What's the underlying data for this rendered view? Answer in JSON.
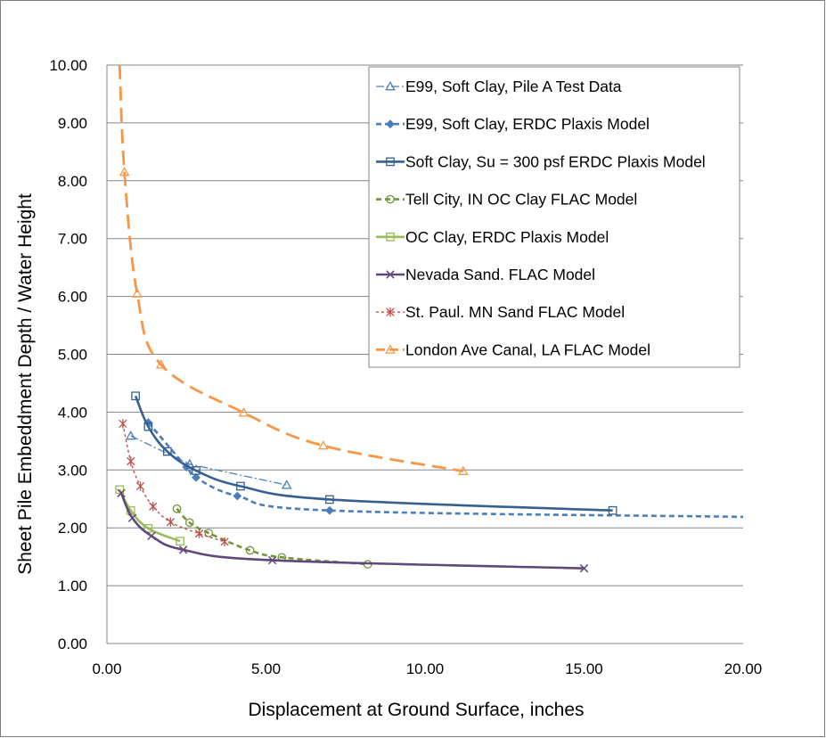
{
  "chart_data": {
    "type": "line",
    "title": "",
    "xlabel": "Displacement at Ground Surface, inches",
    "ylabel": "Sheet Pile Embeddment Depth / Water Height",
    "xlim": [
      0,
      20
    ],
    "ylim": [
      0,
      10
    ],
    "x_ticks": [
      "0.00",
      "5.00",
      "10.00",
      "15.00",
      "20.00"
    ],
    "y_ticks": [
      "0.00",
      "1.00",
      "2.00",
      "3.00",
      "4.00",
      "5.00",
      "6.00",
      "7.00",
      "8.00",
      "9.00",
      "10.00"
    ],
    "grid": "horizontal major gridlines",
    "legend_position": "top-right",
    "series": [
      {
        "name": "E99, Soft Clay, Pile A Test Data",
        "color": "#4a7ebb",
        "line": "dashdot-thin",
        "marker": "triangle",
        "curve": "straight",
        "x": [
          0.75,
          2.6,
          5.65
        ],
        "y": [
          3.59,
          3.1,
          2.74
        ]
      },
      {
        "name": "E99, Soft Clay, ERDC Plaxis Model",
        "color": "#4a7ebb",
        "line": "dashed",
        "marker": "diamond",
        "curve": "smooth",
        "x": [
          1.3,
          2.5,
          2.8,
          4.1,
          7.0,
          20.0
        ],
        "y": [
          3.82,
          3.05,
          2.87,
          2.55,
          2.3,
          2.19
        ]
      },
      {
        "name": "Soft Clay, Su = 300 psf ERDC Plaxis Model",
        "color": "#376092",
        "line": "solid",
        "marker": "square",
        "curve": "smooth",
        "x": [
          0.9,
          1.3,
          1.9,
          2.8,
          4.2,
          7.0,
          15.9
        ],
        "y": [
          4.28,
          3.75,
          3.32,
          2.99,
          2.72,
          2.49,
          2.3
        ]
      },
      {
        "name": "Tell City, IN OC Clay FLAC Model",
        "color": "#77933c",
        "line": "dashed",
        "marker": "circle",
        "curve": "smooth",
        "x": [
          2.2,
          2.6,
          3.2,
          4.5,
          5.5,
          8.2
        ],
        "y": [
          2.33,
          2.09,
          1.91,
          1.61,
          1.49,
          1.37
        ]
      },
      {
        "name": "OC Clay, ERDC Plaxis Model",
        "color": "#9bbb59",
        "line": "solid",
        "marker": "square",
        "curve": "smooth",
        "x": [
          0.4,
          0.75,
          1.3,
          2.3
        ],
        "y": [
          2.66,
          2.3,
          1.99,
          1.77
        ]
      },
      {
        "name": "Nevada Sand. FLAC Model",
        "color": "#60497a",
        "line": "solid",
        "marker": "x",
        "curve": "smooth",
        "x": [
          0.45,
          0.8,
          1.4,
          2.4,
          5.2,
          15.0
        ],
        "y": [
          2.6,
          2.17,
          1.86,
          1.62,
          1.44,
          1.3
        ]
      },
      {
        "name": "St. Paul. MN Sand FLAC Model",
        "color": "#c0504d",
        "line": "dotted",
        "marker": "star",
        "curve": "smooth",
        "x": [
          0.5,
          0.75,
          1.05,
          1.45,
          2.0,
          2.9,
          3.7
        ],
        "y": [
          3.8,
          3.15,
          2.72,
          2.37,
          2.1,
          1.9,
          1.76
        ]
      },
      {
        "name": "London Ave Canal, LA FLAC Model",
        "color": "#f79646",
        "line": "longdash",
        "marker": "triangle",
        "curve": "smooth",
        "x": [
          0.4,
          0.55,
          0.95,
          1.7,
          4.3,
          6.8,
          11.2
        ],
        "y": [
          10.0,
          8.15,
          6.05,
          4.82,
          3.99,
          3.42,
          2.98
        ]
      }
    ]
  }
}
